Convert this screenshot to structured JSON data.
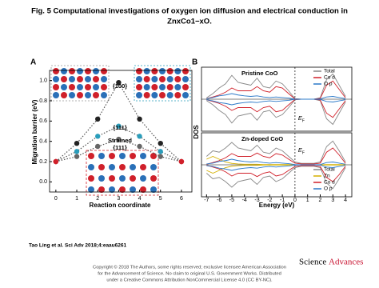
{
  "header": {
    "title_lines": [
      "Fig. 5 Computational investigations of oxygen ion diffusion and electrical conduction in",
      "ZnxCo1−xO."
    ]
  },
  "chart_data": [
    {
      "type": "line",
      "panel": "A",
      "ylabel": "Migration barrier (eV)",
      "xlabel": "Reaction coordinate",
      "x": [
        0,
        1,
        2,
        3,
        4,
        5,
        6
      ],
      "xlim": [
        -0.3,
        6.5
      ],
      "xticks": [
        0,
        1,
        2,
        3,
        4,
        5,
        6
      ],
      "ylim": [
        -0.1,
        1.1
      ],
      "yticks": [
        {
          "value": 0,
          "label": "0.0"
        },
        0.2,
        0.4,
        0.6,
        0.8,
        {
          "value": 1,
          "label": "1.0"
        }
      ],
      "series": [
        {
          "color": "#555555",
          "values": [
            0.2,
            0.38,
            0.62,
            0.98,
            0.62,
            0.38,
            0.2
          ]
        },
        {
          "color": "#555555",
          "values": [
            0.2,
            0.3,
            0.45,
            0.55,
            0.45,
            0.3,
            0.2
          ]
        },
        {
          "color": "#555555",
          "values": [
            0.2,
            0.25,
            0.35,
            0.42,
            0.35,
            0.25,
            0.2
          ]
        }
      ],
      "annotations": [
        "{100}",
        "{111}",
        "Strained",
        "{111}"
      ]
    },
    {
      "type": "dos",
      "panel": "B",
      "ylabel": "DOS",
      "xlabel": "Energy (eV)",
      "ef_label": "E",
      "ef_sub": "F",
      "xlim": [
        -7.4,
        4.5
      ],
      "xticks": [
        -7,
        -6,
        -5,
        -4,
        -3,
        -2,
        -1,
        0,
        1,
        2,
        3,
        4
      ],
      "ylim": [
        -1,
        1
      ],
      "x": [
        -7,
        -6.5,
        -6,
        -5.5,
        -5,
        -4.5,
        -4,
        -3.5,
        -3,
        -2.5,
        -2,
        -1.5,
        -1,
        -0.5,
        0,
        0.5,
        1,
        1.5,
        2,
        2.5,
        3,
        3.5,
        4
      ],
      "panels": [
        {
          "title": "Pristine CoO",
          "series": [
            {
              "name": "Total",
              "color": "#888888",
              "values": [
                0.05,
                0.2,
                0.4,
                0.55,
                0.85,
                0.6,
                0.55,
                0.5,
                0.75,
                0.45,
                0.4,
                0.65,
                0.55,
                0.3,
                0.02,
                0,
                0,
                0,
                0.05,
                0.7,
                0.9,
                0.5,
                0.1
              ]
            },
            {
              "name": "Co d",
              "color": "#d0202a",
              "values": [
                0.02,
                0.08,
                0.15,
                0.25,
                0.4,
                0.3,
                0.3,
                0.3,
                0.45,
                0.3,
                0.25,
                0.45,
                0.4,
                0.2,
                0.01,
                0,
                0,
                0,
                0.03,
                0.5,
                0.65,
                0.35,
                0.05
              ]
            },
            {
              "name": "O p",
              "color": "#2a78c8",
              "values": [
                0.02,
                0.06,
                0.12,
                0.15,
                0.2,
                0.15,
                0.12,
                0.1,
                0.12,
                0.08,
                0.06,
                0.08,
                0.06,
                0.04,
                0,
                0,
                0,
                0,
                0.01,
                0.08,
                0.1,
                0.06,
                0.02
              ]
            }
          ]
        },
        {
          "title": "Zn-doped CoO",
          "series": [
            {
              "name": "Total",
              "color": "#888888",
              "values": [
                0.3,
                0.5,
                0.45,
                0.6,
                0.8,
                0.6,
                0.55,
                0.5,
                0.7,
                0.45,
                0.4,
                0.6,
                0.5,
                0.3,
                0.1,
                0.05,
                0.05,
                0.05,
                0.1,
                0.65,
                0.85,
                0.5,
                0.1
              ]
            },
            {
              "name": "Zn",
              "color": "#d4b000",
              "values": [
                0.2,
                0.3,
                0.2,
                0.1,
                0.05,
                0.03,
                0.02,
                0.02,
                0.02,
                0.01,
                0.01,
                0.01,
                0.01,
                0.01,
                0,
                0,
                0,
                0,
                0,
                0.01,
                0.01,
                0.01,
                0
              ]
            },
            {
              "name": "Co d",
              "color": "#d0202a",
              "values": [
                0.02,
                0.08,
                0.15,
                0.25,
                0.4,
                0.3,
                0.3,
                0.3,
                0.42,
                0.3,
                0.25,
                0.4,
                0.35,
                0.2,
                0.06,
                0.03,
                0.03,
                0.03,
                0.06,
                0.45,
                0.6,
                0.35,
                0.05
              ]
            },
            {
              "name": "O p",
              "color": "#2a78c8",
              "values": [
                0.03,
                0.06,
                0.12,
                0.15,
                0.2,
                0.15,
                0.12,
                0.1,
                0.12,
                0.08,
                0.06,
                0.08,
                0.06,
                0.04,
                0.01,
                0,
                0,
                0,
                0.01,
                0.08,
                0.1,
                0.06,
                0.02
              ]
            }
          ]
        }
      ]
    }
  ],
  "footer": {
    "citation": "Tao Ling et al. Sci Adv 2018;4:eaau6261",
    "copyright_lines": [
      "Copyright © 2018 The Authors, some rights reserved; exclusive licensee American Association",
      "for the Advancement of Science. No claim to original U.S. Government Works. Distributed",
      "under a Creative Commons Attribution NonCommercial License 4.0 (CC BY-NC)."
    ],
    "logo": [
      "Science",
      "Advances"
    ]
  }
}
